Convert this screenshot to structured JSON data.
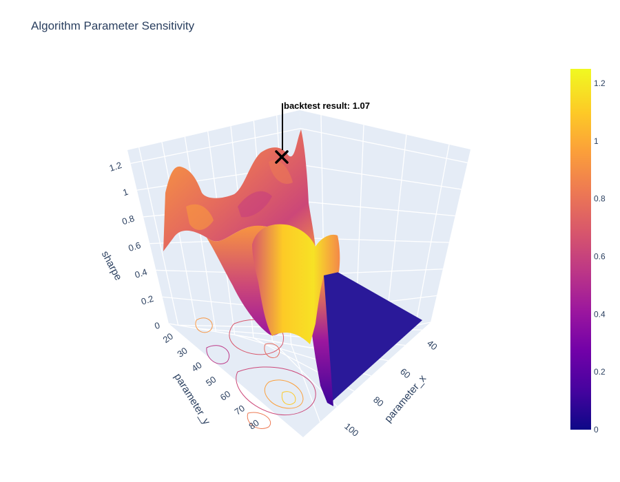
{
  "chart_data": {
    "type": "surface",
    "title": "Algorithm Parameter Sensitivity",
    "axes": {
      "x": {
        "label": "parameter_x",
        "ticks": [
          "40",
          "60",
          "80",
          "100"
        ],
        "range": [
          30,
          110
        ]
      },
      "y": {
        "label": "parameter_y",
        "ticks": [
          "20",
          "30",
          "40",
          "50",
          "60",
          "70",
          "80"
        ],
        "range": [
          15,
          90
        ]
      },
      "z": {
        "label": "sharpe",
        "ticks": [
          "0",
          "0.2",
          "0.4",
          "0.6",
          "0.8",
          "1",
          "1.2"
        ],
        "range": [
          0,
          1.3
        ]
      }
    },
    "colorbar": {
      "ticks": [
        "0",
        "0.2",
        "0.4",
        "0.6",
        "0.8",
        "1",
        "1.2"
      ],
      "range": [
        0,
        1.25
      ],
      "colorscale": "plasma"
    },
    "annotation": {
      "text": "backtest result: 1.07",
      "value": 1.07,
      "marker": "x"
    },
    "contours": {
      "projected_on": "floor",
      "visible": true
    },
    "background_color": "#e5ecf6",
    "zero_region": "parameter_x greater than parameter_y"
  }
}
